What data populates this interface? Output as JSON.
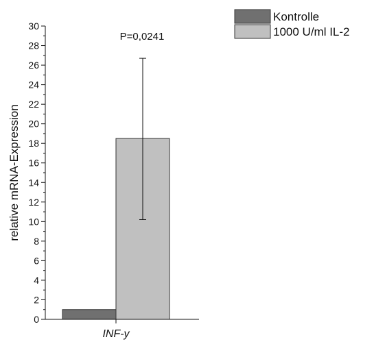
{
  "chart_data": {
    "type": "bar",
    "title": "",
    "xlabel": "",
    "ylabel": "relative mRNA-Expression",
    "categories": [
      "INF-y"
    ],
    "series": [
      {
        "name": "Kontrolle",
        "values": [
          1.0
        ],
        "error": [
          null
        ],
        "color": "#707070"
      },
      {
        "name": "1000 U/ml IL-2",
        "values": [
          18.5
        ],
        "error": [
          [
            10.2,
            26.7
          ]
        ],
        "color": "#c0c0c0"
      }
    ],
    "ylim": [
      0,
      30
    ],
    "yticks": [
      "0",
      "2",
      "4",
      "6",
      "8",
      "10",
      "12",
      "14",
      "16",
      "18",
      "20",
      "22",
      "24",
      "26",
      "28",
      "30"
    ],
    "annotations": [
      {
        "text": "P=0,0241"
      }
    ],
    "legend_placement": "top-right",
    "grid": false
  }
}
